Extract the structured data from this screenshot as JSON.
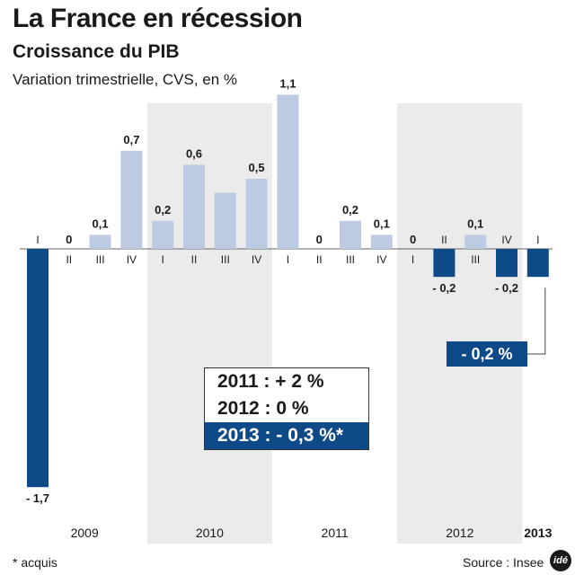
{
  "header": {
    "title": "La France en récession",
    "subtitle": "Croissance du PIB",
    "caption": "Variation trimestrielle, CVS, en %"
  },
  "chart_data": {
    "type": "bar",
    "title": "Croissance du PIB",
    "ylabel": "Variation trimestrielle, CVS, en %",
    "ylim": [
      -1.7,
      1.1
    ],
    "categories": [
      "I",
      "II",
      "III",
      "IV",
      "I",
      "II",
      "III",
      "IV",
      "I",
      "II",
      "III",
      "IV",
      "I",
      "II",
      "III",
      "IV",
      "I"
    ],
    "year_labels": [
      "2009",
      "2010",
      "2011",
      "2012",
      "2013"
    ],
    "quarters_per_year": [
      4,
      4,
      4,
      4,
      1
    ],
    "values": [
      -1.7,
      0,
      0.1,
      0.7,
      0.2,
      0.6,
      0.4,
      0.5,
      1.1,
      0,
      0.2,
      0.1,
      0,
      -0.2,
      0.1,
      -0.2,
      -0.2
    ],
    "value_labels": [
      "- 1,7",
      "0",
      "0,1",
      "0,7",
      "0,2",
      "0,6",
      "",
      "0,5",
      "1,1",
      "0",
      "0,2",
      "0,1",
      "0",
      "- 0,2",
      "0,1",
      "- 0,2",
      ""
    ],
    "highlight_index": 16,
    "shaded_years": [
      "2010",
      "2012"
    ]
  },
  "summary": {
    "rows": [
      "2011 : + 2 %",
      "2012 : 0 %",
      "2013 : - 0,3 %*"
    ]
  },
  "callout": "- 0,2 %",
  "footer": {
    "footnote": "* acquis",
    "source": "Source : Insee",
    "logo": "idé"
  },
  "colors": {
    "bar_light": "#bccbe2",
    "bar_dark": "#0f4a88",
    "shade": "#ebebeb"
  }
}
